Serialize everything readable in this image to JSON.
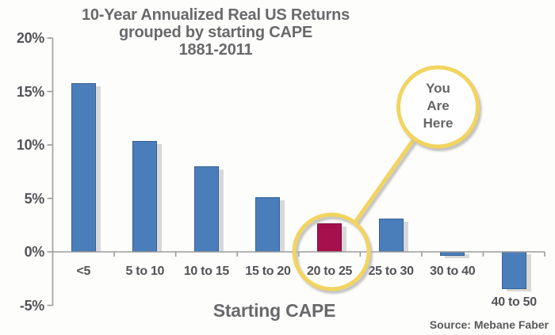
{
  "title": {
    "line1": "10-Year Annualized Real US Returns",
    "line2": "grouped by starting CAPE",
    "line3": "1881-2011"
  },
  "xaxis_title": "Starting CAPE",
  "source": "Source: Mebane Faber",
  "callout": {
    "line1": "You",
    "line2": "Are",
    "line3": "Here"
  },
  "chart_data": {
    "type": "bar",
    "title": "10-Year Annualized Real US Returns grouped by starting CAPE 1881-2011",
    "xlabel": "Starting CAPE",
    "ylabel": "",
    "unit": "%",
    "categories": [
      "<5",
      "5 to 10",
      "10 to 15",
      "15 to 20",
      "20 to 25",
      "25 to 30",
      "30 to 40",
      "40 to 50"
    ],
    "values": [
      15.8,
      10.4,
      8.0,
      5.1,
      2.7,
      3.1,
      -0.4,
      -3.5
    ],
    "highlight_category": "20 to 25",
    "annotation": "You Are Here",
    "ylim": [
      -5,
      20
    ],
    "yticks": [
      20,
      15,
      10,
      5,
      0,
      -5
    ],
    "ytick_labels": [
      "20%",
      "15%",
      "10%",
      "5%",
      "0%",
      "-5%"
    ],
    "grid": false,
    "colors": {
      "bar": "#4a7ebb",
      "bar_border": "#35608f",
      "highlight": "#a6114d",
      "highlight_border": "#7c0c3a",
      "shadow": "#d8d8d8",
      "axis": "#9b9b9b",
      "callout": "#f2d45f"
    }
  }
}
